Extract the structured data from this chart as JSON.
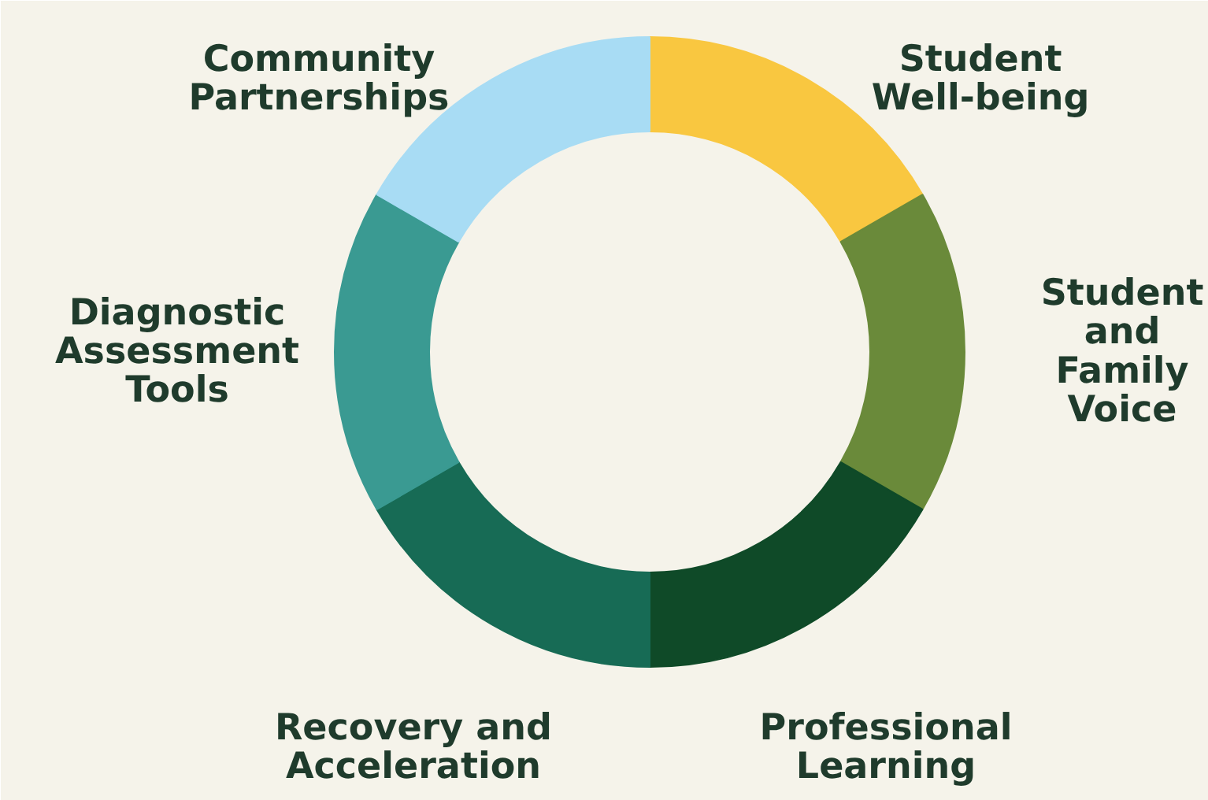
{
  "chart_data": {
    "type": "donut",
    "categories": [
      "Student\nWell-being",
      "Student\nand\nFamily\nVoice",
      "Professional\nLearning",
      "Recovery and\nAcceleration",
      "Diagnostic\nAssessment\nTools",
      "Community\nPartnerships"
    ],
    "values": [
      16.67,
      16.66,
      16.67,
      16.67,
      16.66,
      16.67
    ],
    "colors": [
      "#f9c740",
      "#6a8a3a",
      "#0f4a28",
      "#176b55",
      "#3a9a92",
      "#a8dcf4"
    ]
  }
}
